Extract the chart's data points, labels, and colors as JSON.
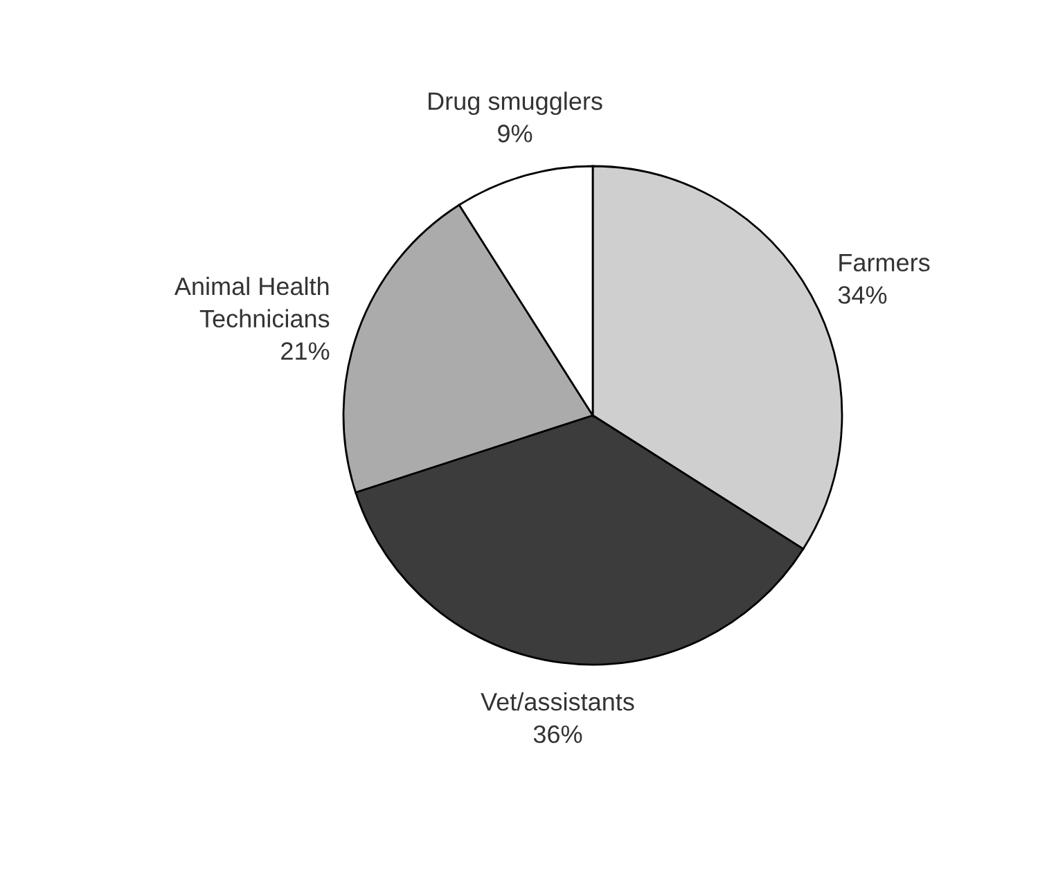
{
  "chart_data": {
    "type": "pie",
    "categories": [
      "Farmers",
      "Vet/assistants",
      "Animal Health\nTechnicians",
      "Drug smugglers"
    ],
    "values": [
      34,
      36,
      21,
      9
    ],
    "value_labels": [
      "34%",
      "36%",
      "21%",
      "9%"
    ],
    "colors": [
      "#cfcfcf",
      "#3c3c3c",
      "#ababab",
      "#ffffff"
    ]
  }
}
